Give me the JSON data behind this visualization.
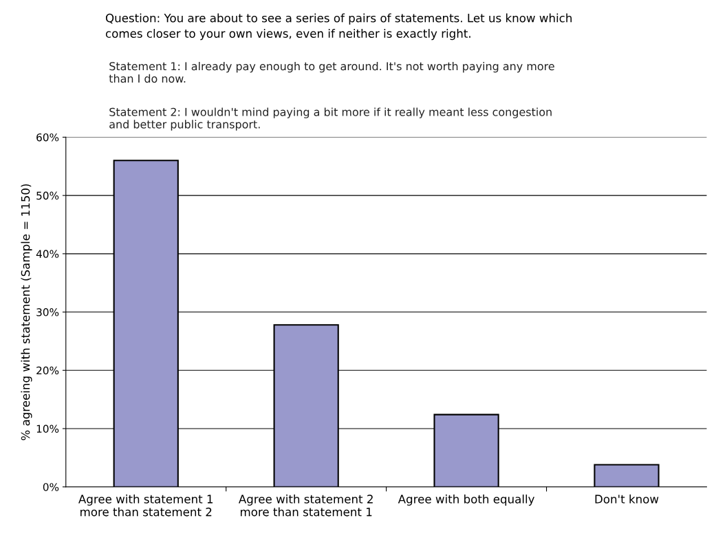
{
  "chart_data": {
    "type": "bar",
    "title": "Question: You are about to see a series of pairs of statements. Let us know which\ncomes closer to your own views, even if neither is exactly right.",
    "annotations": [
      "Statement 1: I already pay enough to get around. It's not worth paying any more\nthan I do now.",
      "Statement 2: I wouldn't mind paying a bit more if it really meant less congestion\nand better public transport."
    ],
    "ylabel": "% agreeing with statement (Sample = 1150)",
    "categories": [
      "Agree with statement 1\nmore than statement 2",
      "Agree with statement 2\nmore than statement 1",
      "Agree with both equally",
      "Don't know"
    ],
    "values": [
      56,
      27.8,
      12.4,
      3.8
    ],
    "color": "#9999cc",
    "ylim": [
      0,
      60
    ],
    "yticks": [
      {
        "value": 0,
        "label": "0%"
      },
      {
        "value": 10,
        "label": "10%"
      },
      {
        "value": 20,
        "label": "20%"
      },
      {
        "value": 30,
        "label": "30%"
      },
      {
        "value": 40,
        "label": "40%"
      },
      {
        "value": 50,
        "label": "50%"
      },
      {
        "value": 60,
        "label": "60%"
      }
    ],
    "grid": "y",
    "legend": false
  }
}
